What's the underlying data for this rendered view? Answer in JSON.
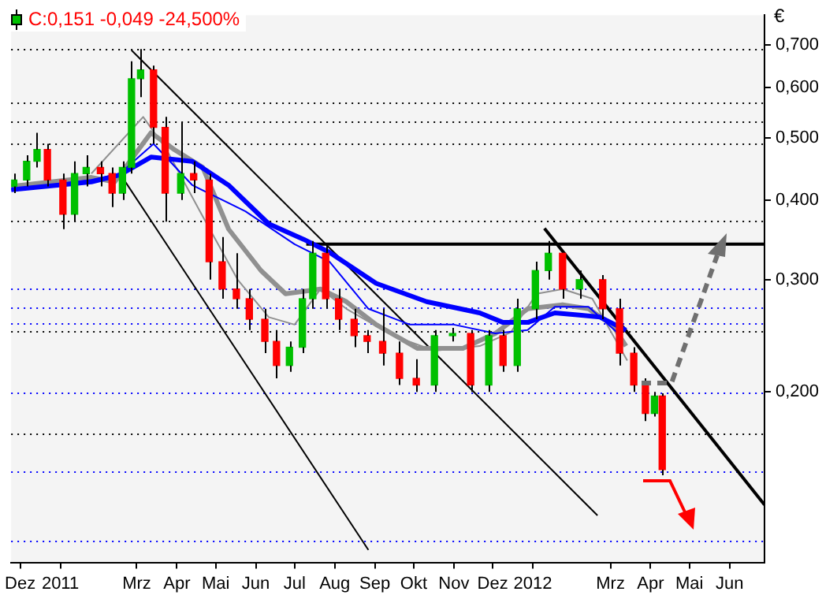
{
  "chart_data": {
    "type": "candlestick",
    "title": "C:0,151 -0,049 -24,500%",
    "ylabel": "€",
    "log": true,
    "grid": false,
    "xlim": [
      "2010-11-24",
      "2012-06-28"
    ],
    "xticks": [
      {
        "value": "2010-12-01",
        "label": "Dez"
      },
      {
        "value": "2011-01-01",
        "label": "2011"
      },
      {
        "value": "2011-03-01",
        "label": "Mrz"
      },
      {
        "value": "2011-04-01",
        "label": "Apr"
      },
      {
        "value": "2011-05-01",
        "label": "Mai"
      },
      {
        "value": "2011-06-01",
        "label": "Jun"
      },
      {
        "value": "2011-07-01",
        "label": "Jul"
      },
      {
        "value": "2011-08-01",
        "label": "Aug"
      },
      {
        "value": "2011-09-01",
        "label": "Sep"
      },
      {
        "value": "2011-10-01",
        "label": "Okt"
      },
      {
        "value": "2011-11-01",
        "label": "Nov"
      },
      {
        "value": "2011-12-01",
        "label": "Dez"
      },
      {
        "value": "2012-01-01",
        "label": "2012"
      },
      {
        "value": "2012-03-01",
        "label": "Mrz"
      },
      {
        "value": "2012-04-01",
        "label": "Apr"
      },
      {
        "value": "2012-05-01",
        "label": "Mai"
      },
      {
        "value": "2012-06-01",
        "label": "Jun"
      }
    ],
    "ylim": [
      0.108,
      0.78
    ],
    "yticks": [
      {
        "value": 0.2,
        "label": "0,200"
      },
      {
        "value": 0.3,
        "label": "0,300"
      },
      {
        "value": 0.4,
        "label": "0,400"
      },
      {
        "value": 0.5,
        "label": "0,500"
      },
      {
        "value": 0.6,
        "label": "0,600"
      },
      {
        "value": 0.7,
        "label": "0,700"
      }
    ],
    "x": [
      "2010-11-26",
      "2010-12-06",
      "2010-12-14",
      "2010-12-22",
      "2011-01-03",
      "2011-01-12",
      "2011-01-21",
      "2011-02-01",
      "2011-02-10",
      "2011-02-18",
      "2011-02-25",
      "2011-03-04",
      "2011-03-14",
      "2011-03-23",
      "2011-04-04",
      "2011-04-14",
      "2011-04-26",
      "2011-05-06",
      "2011-05-17",
      "2011-05-27",
      "2011-06-08",
      "2011-06-17",
      "2011-06-27",
      "2011-07-07",
      "2011-07-15",
      "2011-07-25",
      "2011-08-04",
      "2011-08-16",
      "2011-08-26",
      "2011-09-07",
      "2011-09-20",
      "2011-10-03",
      "2011-10-17",
      "2011-10-31",
      "2011-11-14",
      "2011-11-28",
      "2011-12-09",
      "2011-12-20",
      "2012-01-03",
      "2012-01-13",
      "2012-01-24",
      "2012-02-06",
      "2012-02-24",
      "2012-03-08",
      "2012-03-19",
      "2012-03-28",
      "2012-04-04",
      "2012-04-10"
    ],
    "ohlc": [
      [
        0.42,
        0.44,
        0.41,
        0.43
      ],
      [
        0.43,
        0.47,
        0.42,
        0.46
      ],
      [
        0.46,
        0.51,
        0.45,
        0.48
      ],
      [
        0.48,
        0.49,
        0.42,
        0.43
      ],
      [
        0.43,
        0.44,
        0.36,
        0.38
      ],
      [
        0.38,
        0.46,
        0.37,
        0.44
      ],
      [
        0.44,
        0.47,
        0.42,
        0.45
      ],
      [
        0.45,
        0.46,
        0.42,
        0.44
      ],
      [
        0.44,
        0.45,
        0.39,
        0.41
      ],
      [
        0.41,
        0.46,
        0.4,
        0.45
      ],
      [
        0.45,
        0.66,
        0.44,
        0.62
      ],
      [
        0.62,
        0.69,
        0.58,
        0.64
      ],
      [
        0.64,
        0.65,
        0.49,
        0.52
      ],
      [
        0.52,
        0.54,
        0.37,
        0.41
      ],
      [
        0.41,
        0.53,
        0.4,
        0.44
      ],
      [
        0.44,
        0.46,
        0.41,
        0.43
      ],
      [
        0.43,
        0.44,
        0.3,
        0.32
      ],
      [
        0.32,
        0.35,
        0.28,
        0.29
      ],
      [
        0.29,
        0.33,
        0.27,
        0.28
      ],
      [
        0.28,
        0.29,
        0.25,
        0.26
      ],
      [
        0.26,
        0.27,
        0.23,
        0.24
      ],
      [
        0.24,
        0.25,
        0.21,
        0.22
      ],
      [
        0.22,
        0.24,
        0.215,
        0.235
      ],
      [
        0.235,
        0.29,
        0.23,
        0.28
      ],
      [
        0.28,
        0.345,
        0.27,
        0.33
      ],
      [
        0.33,
        0.34,
        0.27,
        0.28
      ],
      [
        0.28,
        0.29,
        0.25,
        0.26
      ],
      [
        0.26,
        0.27,
        0.235,
        0.245
      ],
      [
        0.245,
        0.25,
        0.23,
        0.24
      ],
      [
        0.24,
        0.27,
        0.22,
        0.23
      ],
      [
        0.23,
        0.24,
        0.205,
        0.21
      ],
      [
        0.21,
        0.225,
        0.2,
        0.205
      ],
      [
        0.205,
        0.25,
        0.2,
        0.245
      ],
      [
        0.245,
        0.252,
        0.24,
        0.247
      ],
      [
        0.247,
        0.25,
        0.2,
        0.205
      ],
      [
        0.205,
        0.25,
        0.2,
        0.245
      ],
      [
        0.245,
        0.25,
        0.215,
        0.22
      ],
      [
        0.22,
        0.28,
        0.215,
        0.27
      ],
      [
        0.27,
        0.32,
        0.26,
        0.31
      ],
      [
        0.31,
        0.345,
        0.3,
        0.33
      ],
      [
        0.33,
        0.33,
        0.28,
        0.29
      ],
      [
        0.29,
        0.31,
        0.28,
        0.3
      ],
      [
        0.3,
        0.305,
        0.26,
        0.27
      ],
      [
        0.27,
        0.28,
        0.22,
        0.23
      ],
      [
        0.23,
        0.235,
        0.2,
        0.205
      ],
      [
        0.205,
        0.21,
        0.18,
        0.185
      ],
      [
        0.185,
        0.2,
        0.183,
        0.197
      ],
      [
        0.197,
        0.199,
        0.148,
        0.151
      ]
    ],
    "colors": [
      "#00c000",
      "#00c000",
      "#00c000",
      "#ff0000",
      "#ff0000",
      "#00c000",
      "#00c000",
      "#ff0000",
      "#ff0000",
      "#00c000",
      "#00c000",
      "#00c000",
      "#ff0000",
      "#ff0000",
      "#00c000",
      "#ff0000",
      "#ff0000",
      "#ff0000",
      "#ff0000",
      "#ff0000",
      "#ff0000",
      "#ff0000",
      "#00c000",
      "#00c000",
      "#00c000",
      "#ff0000",
      "#ff0000",
      "#ff0000",
      "#ff0000",
      "#ff0000",
      "#ff0000",
      "#ff0000",
      "#00c000",
      "#00c000",
      "#ff0000",
      "#00c000",
      "#ff0000",
      "#00c000",
      "#00c000",
      "#00c000",
      "#ff0000",
      "#00c000",
      "#ff0000",
      "#ff0000",
      "#ff0000",
      "#ff0000",
      "#00c000",
      "#ff0000"
    ],
    "series": [
      {
        "type": "line",
        "color": "#0000ff",
        "x": [
          "2010-11-24",
          "2011-01-25",
          "2011-02-16",
          "2011-03-12",
          "2011-04-13",
          "2011-05-11",
          "2011-06-11",
          "2011-07-08",
          "2011-07-28",
          "2011-09-02",
          "2011-10-11",
          "2011-11-21",
          "2011-12-09",
          "2011-12-28",
          "2012-01-18",
          "2012-02-06",
          "2012-02-22",
          "2012-03-13"
        ],
        "values": [
          0.415,
          0.427,
          0.438,
          0.467,
          0.46,
          0.422,
          0.367,
          0.347,
          0.331,
          0.296,
          0.277,
          0.266,
          0.257,
          0.257,
          0.266,
          0.264,
          0.262,
          0.25
        ]
      },
      {
        "type": "line",
        "color": "#0000ff",
        "x": [
          "2010-11-24",
          "2011-01-25",
          "2011-02-16",
          "2011-03-14",
          "2011-04-13",
          "2011-05-24",
          "2011-07-01",
          "2011-07-28",
          "2011-08-27",
          "2011-09-28",
          "2011-11-01",
          "2011-12-03",
          "2011-12-28",
          "2012-01-18",
          "2012-02-13",
          "2012-03-09"
        ],
        "values": [
          0.415,
          0.43,
          0.44,
          0.49,
          0.422,
          0.384,
          0.341,
          0.32,
          0.27,
          0.255,
          0.255,
          0.247,
          0.25,
          0.272,
          0.272,
          0.245
        ]
      },
      {
        "type": "line",
        "color": "#909090",
        "x": [
          "2010-11-24",
          "2011-01-25",
          "2011-02-12",
          "2011-03-12",
          "2011-03-30",
          "2011-04-21",
          "2011-05-11",
          "2011-06-05",
          "2011-06-24",
          "2011-07-21",
          "2011-08-10",
          "2011-09-02",
          "2011-10-04",
          "2011-11-08",
          "2011-12-03",
          "2011-12-28",
          "2012-01-24",
          "2012-02-13",
          "2012-03-03",
          "2012-03-13"
        ],
        "values": [
          0.42,
          0.434,
          0.427,
          0.51,
          0.48,
          0.45,
          0.36,
          0.31,
          0.285,
          0.29,
          0.277,
          0.255,
          0.234,
          0.234,
          0.247,
          0.27,
          0.274,
          0.27,
          0.254,
          0.236
        ]
      },
      {
        "type": "line",
        "color": "#909090",
        "x": [
          "2011-01-25",
          "2011-03-06",
          "2011-03-24",
          "2011-04-21",
          "2011-05-18",
          "2011-06-11",
          "2011-07-01",
          "2011-07-21",
          "2011-08-10",
          "2011-09-15",
          "2011-10-17",
          "2011-11-21",
          "2011-12-15",
          "2012-01-04",
          "2012-01-24",
          "2012-02-16",
          "2012-03-14"
        ],
        "values": [
          0.44,
          0.54,
          0.48,
          0.377,
          0.3,
          0.262,
          0.255,
          0.29,
          0.27,
          0.245,
          0.232,
          0.236,
          0.248,
          0.285,
          0.29,
          0.28,
          0.224
        ]
      },
      {
        "type": "line",
        "color": "#000000",
        "x": [
          "2011-02-25",
          "2012-02-20"
        ],
        "values": [
          0.687,
          0.128
        ]
      },
      {
        "type": "line",
        "color": "#000000",
        "x": [
          "2011-02-18",
          "2011-08-27"
        ],
        "values": [
          0.434,
          0.113
        ]
      },
      {
        "type": "line",
        "color": "#000000",
        "x": [
          "2011-07-10",
          "2012-06-28"
        ],
        "values": [
          0.341,
          0.341
        ]
      },
      {
        "type": "line",
        "color": "#000000",
        "x": [
          "2012-01-10",
          "2012-06-28"
        ],
        "values": [
          0.361,
          0.133
        ]
      }
    ],
    "ref_lines": [
      {
        "axis": "y",
        "value": 0.692,
        "color": "#000000",
        "line_style": "dotted"
      },
      {
        "axis": "y",
        "value": 0.569,
        "color": "#000000",
        "line_style": "dotted"
      },
      {
        "axis": "y",
        "value": 0.531,
        "color": "#000000",
        "line_style": "dotted"
      },
      {
        "axis": "y",
        "value": 0.49,
        "color": "#000000",
        "line_style": "dotted"
      },
      {
        "axis": "y",
        "value": 0.371,
        "color": "#000000",
        "line_style": "dotted"
      },
      {
        "axis": "y",
        "value": 0.249,
        "color": "#000000",
        "line_style": "dotted"
      },
      {
        "axis": "y",
        "value": 0.172,
        "color": "#000000",
        "line_style": "dotted"
      },
      {
        "axis": "y",
        "value": 0.29,
        "color": "#0000ff",
        "line_style": "dotted"
      },
      {
        "axis": "y",
        "value": 0.272,
        "color": "#0000ff",
        "line_style": "dotted"
      },
      {
        "axis": "y",
        "value": 0.256,
        "color": "#0000ff",
        "line_style": "dotted"
      },
      {
        "axis": "y",
        "value": 0.2,
        "color": "#0000ff",
        "line_style": "dotted"
      },
      {
        "axis": "y",
        "value": 0.15,
        "color": "#0000ff",
        "line_style": "dotted"
      },
      {
        "axis": "y",
        "value": 0.117,
        "color": "#0000ff",
        "line_style": "dotted"
      }
    ]
  }
}
